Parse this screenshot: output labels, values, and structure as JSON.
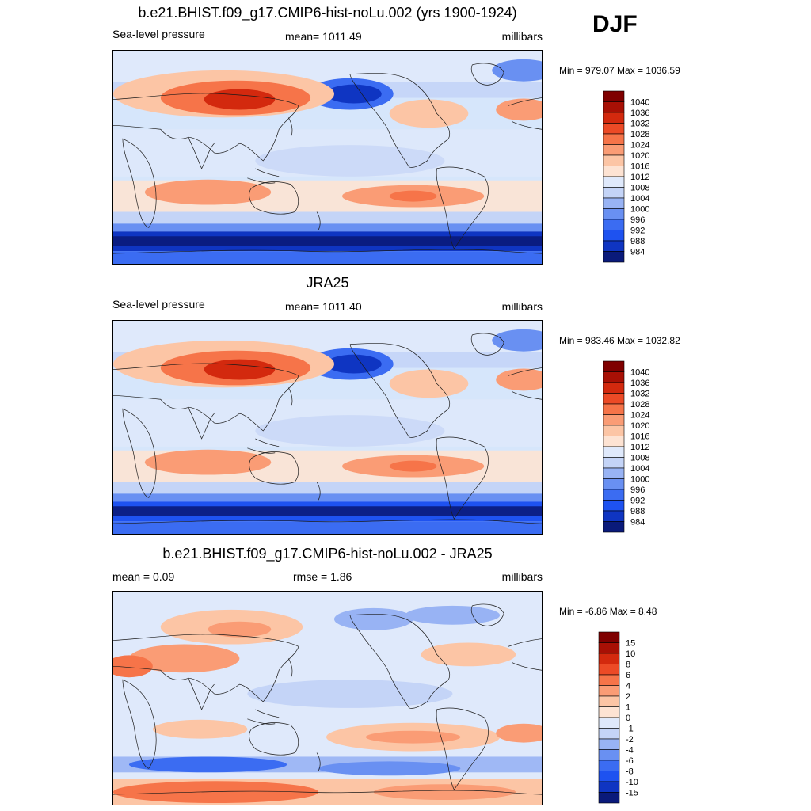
{
  "season": "DJF",
  "colors": {
    "ssl_palette": [
      "#0a1a7a",
      "#0f35c2",
      "#1e52f0",
      "#3b6cf2",
      "#6990f2",
      "#98b3f4",
      "#c4d4f7",
      "#dfe9fb",
      "#fde3d3",
      "#fcc5a5",
      "#fa9c75",
      "#f67449",
      "#ec4a26",
      "#d3290e",
      "#a81005",
      "#7f0000"
    ],
    "diff_palette": [
      "#0a1a7a",
      "#0f35c2",
      "#1e52f0",
      "#3b6cf2",
      "#6990f2",
      "#98b3f4",
      "#c4d4f7",
      "#dfe9fb",
      "#fde3d3",
      "#fcc5a5",
      "#fa9c75",
      "#f67449",
      "#ec4a26",
      "#d3290e",
      "#a81005",
      "#7f0000"
    ],
    "coast": "#1a1a1a"
  },
  "panels": [
    {
      "title": "b.e21.BHIST.f09_g17.CMIP6-hist-noLu.002 (yrs 1900-1924)",
      "left_label": "Sea-level pressure",
      "center_label": "mean= 1011.49",
      "right_label": "millibars",
      "minmax": "Min = 979.07 Max = 1036.59"
    },
    {
      "title": "JRA25",
      "left_label": "Sea-level pressure",
      "center_label": "mean= 1011.40",
      "right_label": "millibars",
      "minmax": "Min = 983.46 Max = 1032.82"
    },
    {
      "title": "b.e21.BHIST.f09_g17.CMIP6-hist-noLu.002 - JRA25",
      "left_label": "mean =   0.09",
      "center_label": "rmse =   1.86",
      "right_label": "millibars",
      "minmax": "Min =  -6.86 Max =   8.48"
    }
  ],
  "chart_data": [
    {
      "type": "heatmap",
      "title": "b.e21.BHIST.f09_g17.CMIP6-hist-noLu.002 (yrs 1900-1924)",
      "variable": "Sea-level pressure",
      "units": "millibars",
      "mean": 1011.49,
      "min": 979.07,
      "max": 1036.59,
      "colorbar_levels": [
        984,
        988,
        992,
        996,
        1000,
        1004,
        1008,
        1012,
        1016,
        1020,
        1024,
        1028,
        1032,
        1036,
        1040
      ],
      "projection": "cylindrical equidistant, centered on Pacific"
    },
    {
      "type": "heatmap",
      "title": "JRA25",
      "variable": "Sea-level pressure",
      "units": "millibars",
      "mean": 1011.4,
      "min": 983.46,
      "max": 1032.82,
      "colorbar_levels": [
        984,
        988,
        992,
        996,
        1000,
        1004,
        1008,
        1012,
        1016,
        1020,
        1024,
        1028,
        1032,
        1036,
        1040
      ],
      "projection": "cylindrical equidistant, centered on Pacific"
    },
    {
      "type": "heatmap",
      "title": "b.e21.BHIST.f09_g17.CMIP6-hist-noLu.002 - JRA25",
      "units": "millibars",
      "mean": 0.09,
      "rmse": 1.86,
      "min": -6.86,
      "max": 8.48,
      "colorbar_levels": [
        -15,
        -10,
        -8,
        -6,
        -4,
        -2,
        -1,
        0,
        1,
        2,
        4,
        6,
        8,
        10,
        15
      ],
      "projection": "cylindrical equidistant, centered on Pacific"
    }
  ]
}
